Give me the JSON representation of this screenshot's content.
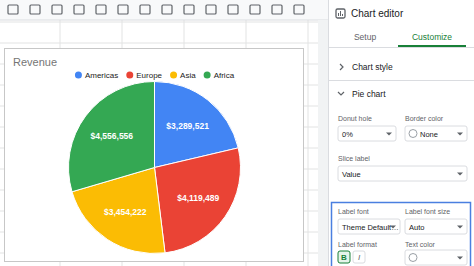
{
  "chart_data": {
    "type": "pie",
    "title": "Revenue",
    "categories": [
      "Americas",
      "Europe",
      "Asia",
      "Africa"
    ],
    "values": [
      3289521,
      4119489,
      3454222,
      4556556
    ],
    "value_labels": [
      "$3,289,521",
      "$4,119,489",
      "$3,454,222",
      "$4,556,556"
    ],
    "colors": [
      "#4285f4",
      "#ea4335",
      "#fbbc04",
      "#34a853"
    ],
    "data_labels": true,
    "legend": "top"
  },
  "editor": {
    "title": "Chart editor",
    "tabs": [
      "Setup",
      "Customize"
    ],
    "active_tab": "Customize",
    "sections": [
      "Chart style",
      "Pie chart"
    ],
    "fields": {
      "donut_hole": {
        "label": "Donut hole",
        "value": "0%"
      },
      "border_color": {
        "label": "Border color",
        "value": "None"
      },
      "slice_label": {
        "label": "Slice label",
        "value": "Value"
      },
      "label_font": {
        "label": "Label font",
        "value": "Theme Default…"
      },
      "label_font_size": {
        "label": "Label font size",
        "value": "Auto"
      },
      "label_format": {
        "label": "Label format",
        "buttons": [
          "B",
          "I"
        ]
      },
      "text_color": {
        "label": "Text color"
      }
    }
  }
}
